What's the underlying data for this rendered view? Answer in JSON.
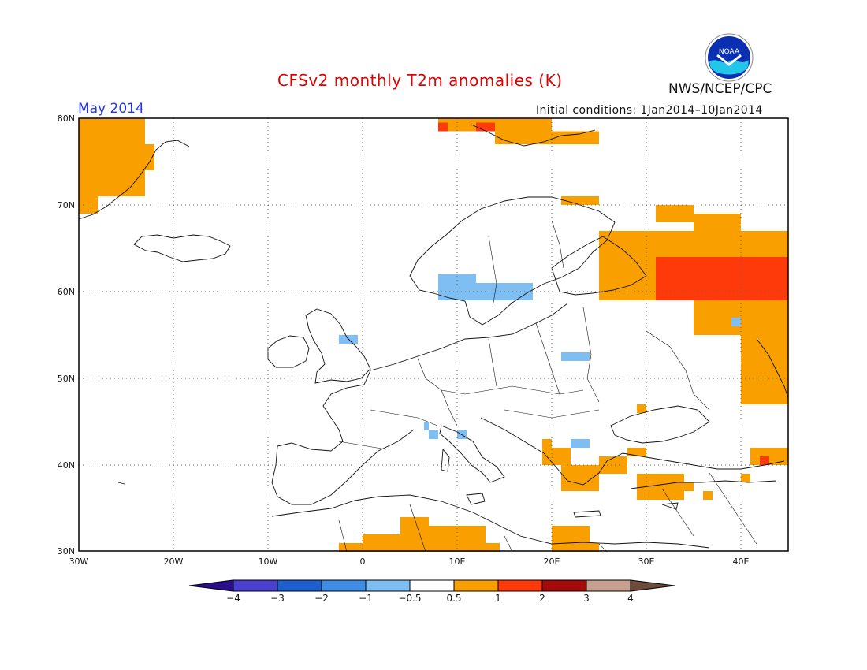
{
  "header": {
    "title": "CFSv2 monthly T2m anomalies (K)",
    "month": "May 2014",
    "initial_conditions": "Initial conditions: 1Jan2014–10Jan2014",
    "agency": "NWS/NCEP/CPC",
    "logo_text": "NOAA"
  },
  "map": {
    "lat_labels": [
      "80N",
      "70N",
      "60N",
      "50N",
      "40N",
      "30N"
    ],
    "lon_labels": [
      "30W",
      "20W",
      "10W",
      "0",
      "10E",
      "20E",
      "30E",
      "40E"
    ]
  },
  "colorbar": {
    "labels": [
      "−4",
      "−3",
      "−2",
      "−1",
      "−0.5",
      "0.5",
      "1",
      "2",
      "3",
      "4"
    ],
    "colors": [
      "#2a0f8c",
      "#4a3fcf",
      "#1e5fd0",
      "#3e8ee8",
      "#7fbef2",
      "#ffffff",
      "#f9a000",
      "#ff3a0a",
      "#a50a0a",
      "#c8a090",
      "#6e4a3a"
    ]
  },
  "colors": {
    "orange": "#f9a000",
    "red": "#ff3a0a",
    "lightblue": "#7fbef2",
    "title_red": "#e00000",
    "month_blue": "#2233ee"
  }
}
